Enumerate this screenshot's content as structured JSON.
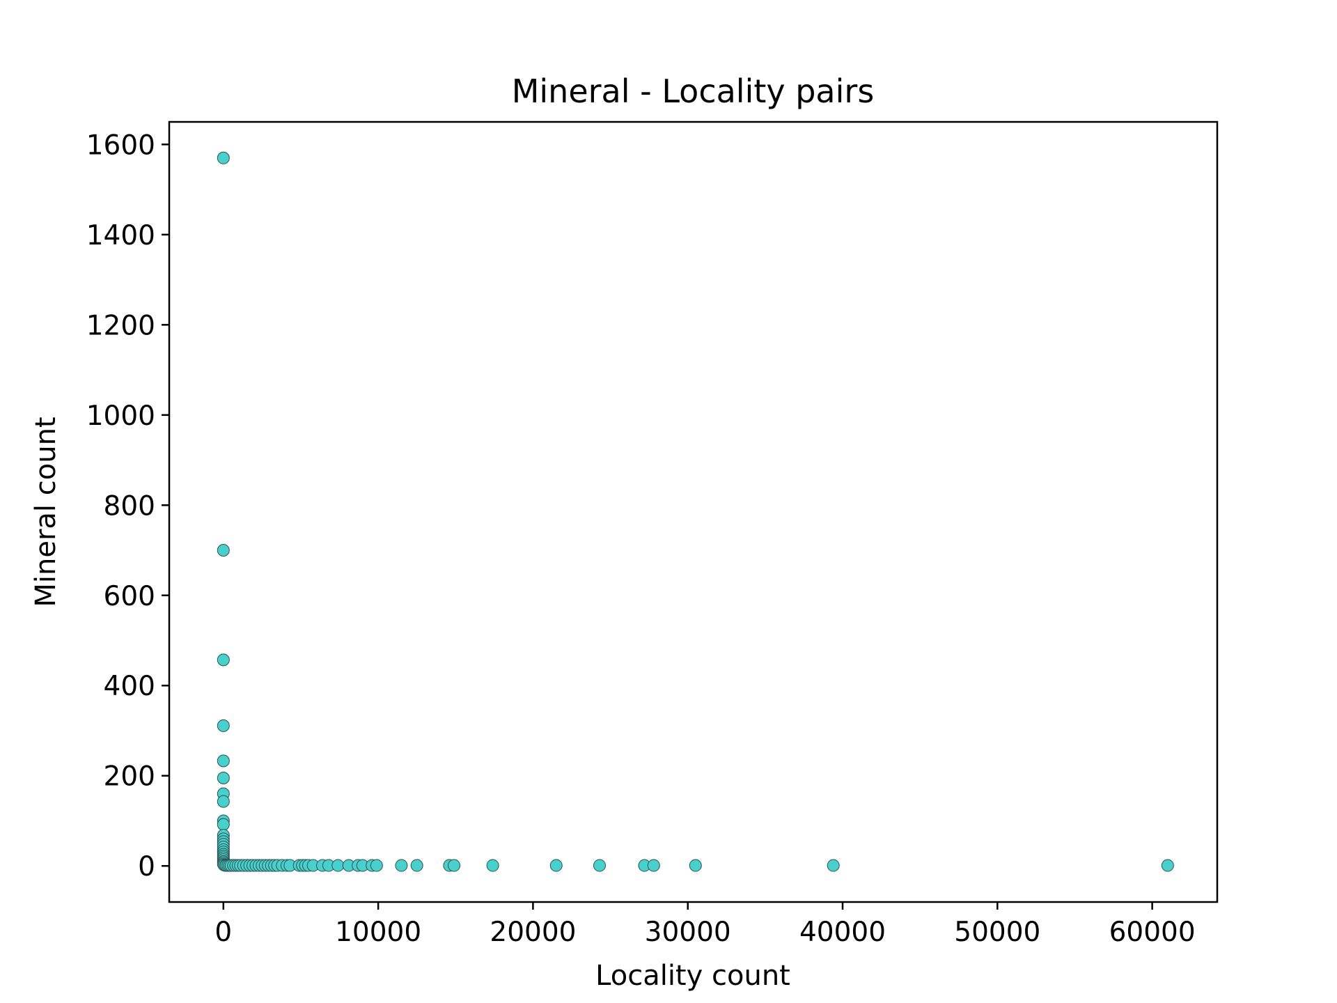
{
  "chart_data": {
    "type": "scatter",
    "title": "Mineral - Locality pairs",
    "xlabel": "Locality count",
    "ylabel": "Mineral count",
    "xlim": [
      -3500,
      64200
    ],
    "ylim": [
      -80,
      1650
    ],
    "xticks": [
      0,
      10000,
      20000,
      30000,
      40000,
      50000,
      60000
    ],
    "xtick_labels": [
      "0",
      "10000",
      "20000",
      "30000",
      "40000",
      "50000",
      "60000"
    ],
    "yticks": [
      0,
      200,
      400,
      600,
      800,
      1000,
      1200,
      1400,
      1600
    ],
    "ytick_labels": [
      "0",
      "200",
      "400",
      "600",
      "800",
      "1000",
      "1200",
      "1400",
      "1600"
    ],
    "grid": false,
    "marker_color": "#48D1CC",
    "marker_edge_color": "#2F4F4F",
    "series": [
      {
        "name": "pairs",
        "points": [
          [
            1,
            1570
          ],
          [
            1,
            700
          ],
          [
            1,
            457
          ],
          [
            1,
            311
          ],
          [
            1,
            233
          ],
          [
            1,
            195
          ],
          [
            1,
            160
          ],
          [
            1,
            143
          ],
          [
            1,
            100
          ],
          [
            1,
            92
          ],
          [
            1,
            68
          ],
          [
            1,
            60
          ],
          [
            1,
            54
          ],
          [
            1,
            48
          ],
          [
            1,
            42
          ],
          [
            1,
            36
          ],
          [
            1,
            31
          ],
          [
            1,
            26
          ],
          [
            1,
            22
          ],
          [
            1,
            18
          ],
          [
            1,
            14
          ],
          [
            1,
            10
          ],
          [
            1,
            7
          ],
          [
            1,
            4
          ],
          [
            40,
            2
          ],
          [
            120,
            1
          ],
          [
            200,
            1
          ],
          [
            300,
            1
          ],
          [
            400,
            1
          ],
          [
            500,
            1
          ],
          [
            650,
            1
          ],
          [
            800,
            1
          ],
          [
            950,
            1
          ],
          [
            1100,
            1
          ],
          [
            1300,
            1
          ],
          [
            1500,
            1
          ],
          [
            1700,
            1
          ],
          [
            1900,
            1
          ],
          [
            2100,
            1
          ],
          [
            2300,
            1
          ],
          [
            2500,
            1
          ],
          [
            2700,
            1
          ],
          [
            2900,
            1
          ],
          [
            3100,
            1
          ],
          [
            3300,
            1
          ],
          [
            3500,
            1
          ],
          [
            3800,
            1
          ],
          [
            4100,
            1
          ],
          [
            4300,
            1
          ],
          [
            4900,
            1
          ],
          [
            5100,
            1
          ],
          [
            5300,
            1
          ],
          [
            5500,
            1
          ],
          [
            5800,
            1
          ],
          [
            6400,
            1
          ],
          [
            6800,
            1
          ],
          [
            7400,
            1
          ],
          [
            8100,
            1
          ],
          [
            8700,
            1
          ],
          [
            9000,
            1
          ],
          [
            9600,
            1
          ],
          [
            9900,
            1
          ],
          [
            11500,
            1
          ],
          [
            12500,
            1
          ],
          [
            14600,
            1
          ],
          [
            14900,
            1
          ],
          [
            17400,
            1
          ],
          [
            21500,
            1
          ],
          [
            24300,
            1
          ],
          [
            27200,
            1
          ],
          [
            27800,
            1
          ],
          [
            30500,
            1
          ],
          [
            39400,
            1
          ],
          [
            61000,
            1
          ]
        ]
      }
    ]
  }
}
